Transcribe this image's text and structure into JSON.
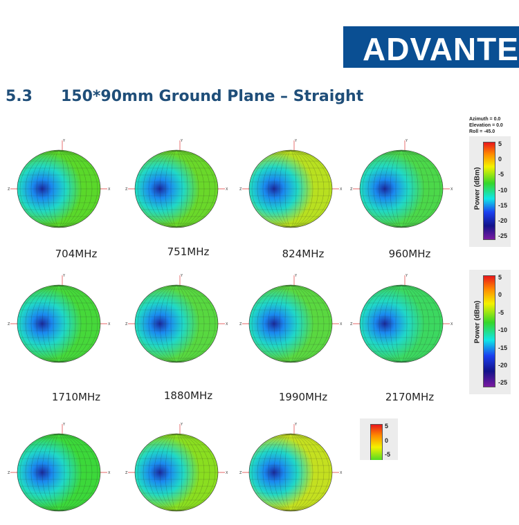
{
  "logo": {
    "text": "ADVANTECH",
    "color": "#0a4f93"
  },
  "heading": {
    "number": "5.3",
    "title": "150*90mm Ground Plane – Straight",
    "color": "#1f4e79"
  },
  "orientation": {
    "azimuth": "Azimuth = 0.0",
    "elevation": "Elevation = 0.0",
    "roll": "Roll = -45.0"
  },
  "legend": {
    "label": "Power (dBm)",
    "ticks": [
      "5",
      "0",
      "-5",
      "-10",
      "-15",
      "-20",
      "-25"
    ]
  },
  "axis_labels": {
    "x": "X",
    "y": "Y",
    "z": "Z"
  },
  "plots": [
    {
      "freq": "704MHz",
      "color": "#5ad82a"
    },
    {
      "freq": "751MHz",
      "color": "#6ad82a"
    },
    {
      "freq": "824MHz",
      "color": "#b8e020"
    },
    {
      "freq": "960MHz",
      "color": "#4cd84a"
    },
    {
      "freq": "1710MHz",
      "color": "#46d83a"
    },
    {
      "freq": "1880MHz",
      "color": "#58d840"
    },
    {
      "freq": "1990MHz",
      "color": "#5ad840"
    },
    {
      "freq": "2170MHz",
      "color": "#3cd860"
    },
    {
      "freq": "",
      "color": "#3cd83a"
    },
    {
      "freq": "",
      "color": "#8ade20"
    },
    {
      "freq": "",
      "color": "#c4e020"
    }
  ]
}
